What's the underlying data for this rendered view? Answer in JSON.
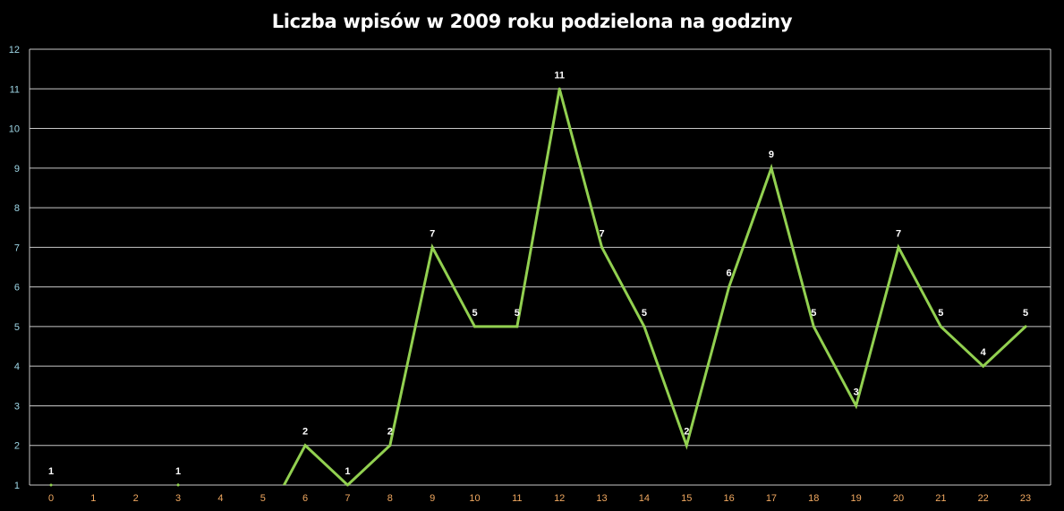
{
  "chart_data": {
    "type": "line",
    "title": "Liczba wpisów w 2009 roku podzielona na godziny",
    "xlabel": "",
    "ylabel": "",
    "categories": [
      "0",
      "1",
      "2",
      "3",
      "4",
      "5",
      "6",
      "7",
      "8",
      "9",
      "10",
      "11",
      "12",
      "13",
      "14",
      "15",
      "16",
      "17",
      "18",
      "19",
      "20",
      "21",
      "22",
      "23"
    ],
    "series": [
      {
        "values": [
          1,
          0,
          0,
          1,
          0,
          0,
          2,
          1,
          2,
          7,
          5,
          5,
          11,
          7,
          5,
          2,
          6,
          9,
          5,
          3,
          7,
          5,
          4,
          5
        ],
        "labels": [
          "1",
          "",
          "",
          "1",
          "",
          "",
          "2",
          "1",
          "2",
          "7",
          "5",
          "5",
          "11",
          "7",
          "5",
          "2",
          "6",
          "9",
          "5",
          "3",
          "7",
          "5",
          "4",
          "5"
        ]
      }
    ],
    "ylim": [
      1,
      12
    ],
    "yticks": [
      "1",
      "2",
      "3",
      "4",
      "5",
      "6",
      "7",
      "8",
      "9",
      "10",
      "11",
      "12"
    ],
    "grid": true,
    "legend": "none"
  },
  "colors": {
    "background": "#000000",
    "line": "#92d050",
    "gridline": "#c8c8c8",
    "y_tick_text": "#9fd8e8",
    "x_tick_text": "#f0a860",
    "label_text": "#ffffff"
  }
}
